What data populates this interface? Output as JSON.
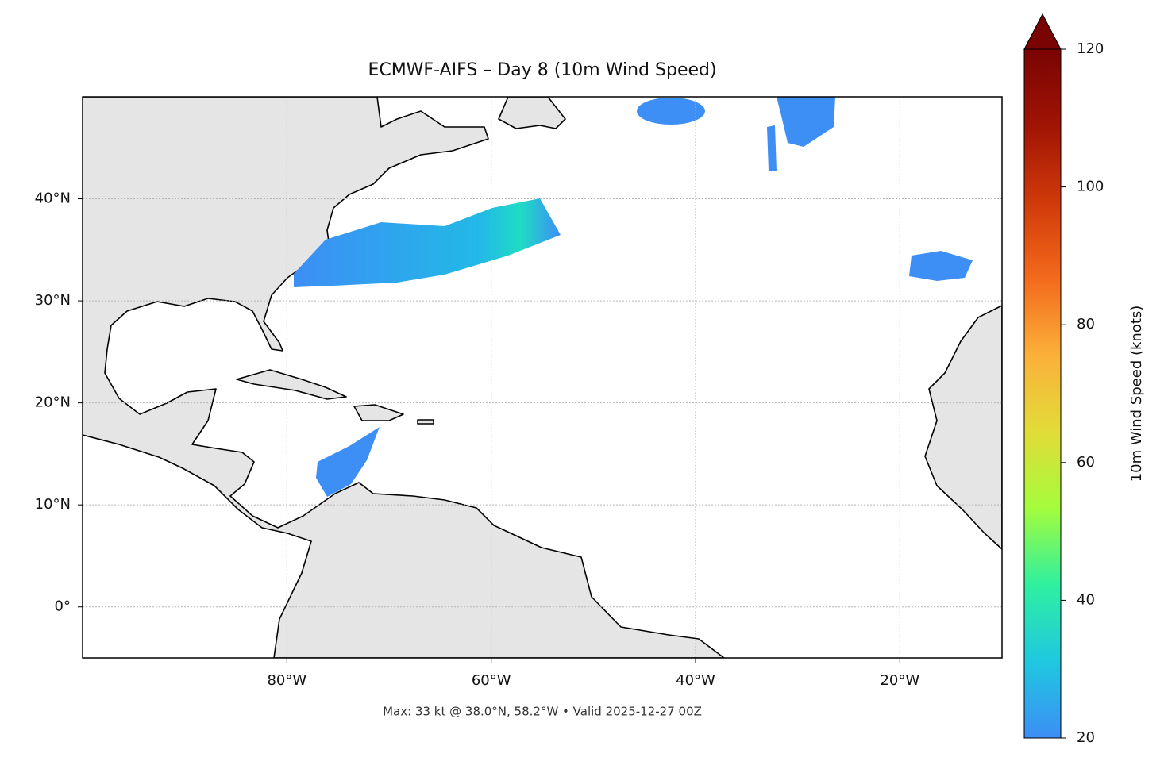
{
  "chart_data": {
    "type": "map",
    "title": "ECMWF-AIFS – Day 8 (10m Wind Speed)",
    "footer": "Max: 33 kt @ 38.0°N, 58.2°W • Valid 2025-12-27 00Z",
    "xlim": [
      -100,
      -10
    ],
    "xticks": [
      {
        "value": -80,
        "label": "80°W"
      },
      {
        "value": -60,
        "label": "60°W"
      },
      {
        "value": -40,
        "label": "40°W"
      },
      {
        "value": -20,
        "label": "20°W"
      }
    ],
    "ylim": [
      -5,
      50
    ],
    "yticks": [
      {
        "value": 0,
        "label": "0°"
      },
      {
        "value": 10,
        "label": "10°N"
      },
      {
        "value": 20,
        "label": "20°N"
      },
      {
        "value": 30,
        "label": "30°N"
      },
      {
        "value": 40,
        "label": "40°N"
      }
    ],
    "grid": true,
    "colorbar": {
      "label": "10m Wind Speed (knots)",
      "lim": [
        20,
        120
      ],
      "ticks": [
        20,
        40,
        60,
        80,
        100,
        120
      ],
      "colormap": [
        "#3d8ef5",
        "#1fc8e0",
        "#2ef0a0",
        "#a4fc3c",
        "#e2dc38",
        "#fbb03a",
        "#f36a1c",
        "#d03a0a",
        "#a01404",
        "#7a0403"
      ]
    }
  }
}
